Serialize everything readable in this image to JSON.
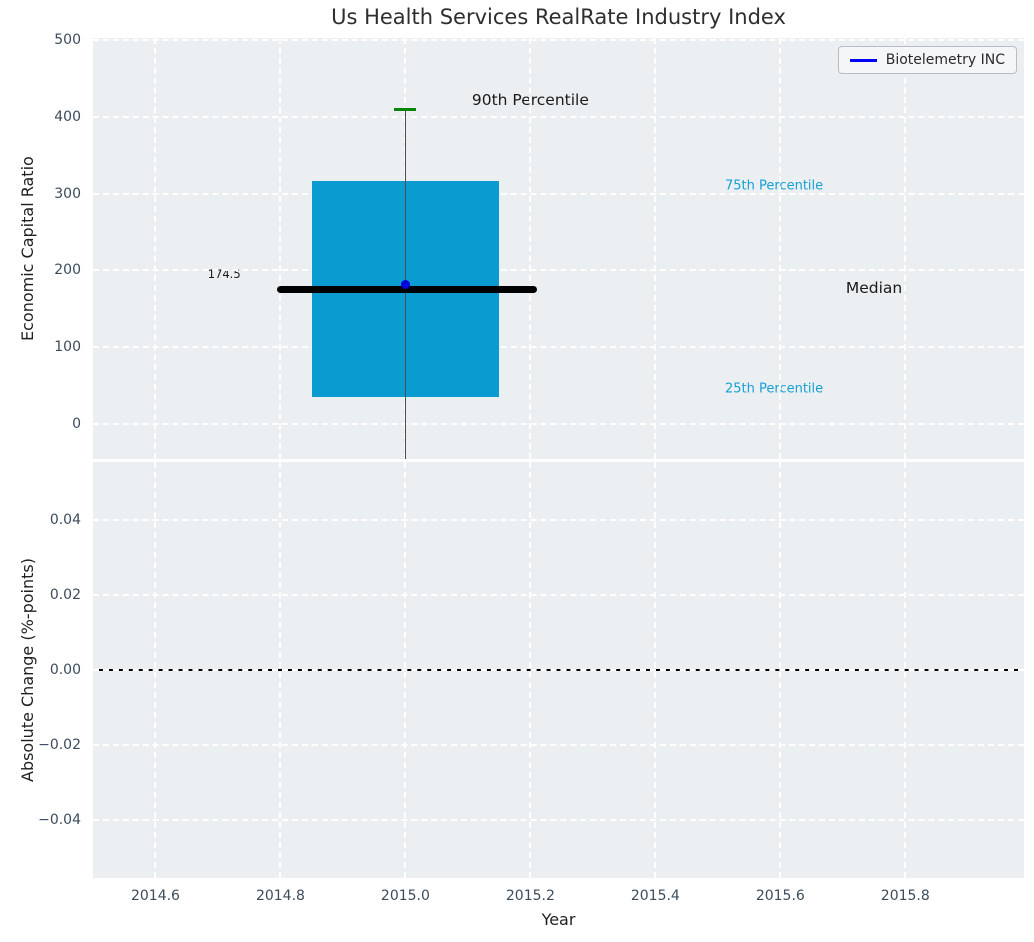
{
  "chart_data": [
    {
      "type": "boxplot",
      "title": "Us Health Services RealRate Industry Index",
      "ylabel": "Economic Capital Ratio",
      "xlabel": "",
      "xlim": [
        2014.5,
        2015.99
      ],
      "ylim": [
        -46,
        503
      ],
      "grid": true,
      "legend": {
        "label": "Biotelemetry INC",
        "position": "upper right"
      },
      "xticks": [
        {
          "v": 2014.6,
          "label": "2014.6"
        },
        {
          "v": 2014.8,
          "label": "2014.8"
        },
        {
          "v": 2015.0,
          "label": "2015.0"
        },
        {
          "v": 2015.2,
          "label": "2015.2"
        },
        {
          "v": 2015.4,
          "label": "2015.4"
        },
        {
          "v": 2015.6,
          "label": "2015.6"
        },
        {
          "v": 2015.8,
          "label": "2015.8"
        }
      ],
      "yticks": [
        {
          "v": 500,
          "label": "500"
        },
        {
          "v": 400,
          "label": "400"
        },
        {
          "v": 300,
          "label": "300"
        },
        {
          "v": 200,
          "label": "200"
        },
        {
          "v": 100,
          "label": "100"
        },
        {
          "v": 0,
          "label": "0"
        }
      ],
      "box": {
        "center_x": 2015.0,
        "left": 2014.85,
        "right": 2015.15,
        "q1": 35,
        "median": 174.5,
        "q3": 316,
        "p90": 410,
        "median_line_x0": 2014.795,
        "median_line_x1": 2015.21,
        "lower_whisker_clipped": true
      },
      "series": [
        {
          "name": "Biotelemetry INC",
          "x": 2015.0,
          "y": 182,
          "marker": "circle"
        }
      ],
      "annotations": {
        "p90": {
          "text": "90th Percentile",
          "x": 2015.2,
          "y": 422
        },
        "p75": {
          "text": "75th Percentile",
          "x": 2015.59,
          "y": 310
        },
        "median": {
          "text": "Median",
          "x": 2015.75,
          "y": 177
        },
        "p25": {
          "text": "25th Percentile",
          "x": 2015.59,
          "y": 45
        },
        "median_value": {
          "text": "174.5",
          "x": 2014.71,
          "y": 195
        }
      }
    },
    {
      "type": "line",
      "title": "",
      "ylabel": "Absolute Change (%-points)",
      "xlabel": "Year",
      "xlim": [
        2014.5,
        2015.99
      ],
      "ylim": [
        -0.0555,
        0.0555
      ],
      "grid": true,
      "zero_line_y": 0,
      "xticks": [
        {
          "v": 2014.6,
          "label": "2014.6"
        },
        {
          "v": 2014.8,
          "label": "2014.8"
        },
        {
          "v": 2015.0,
          "label": "2015.0"
        },
        {
          "v": 2015.2,
          "label": "2015.2"
        },
        {
          "v": 2015.4,
          "label": "2015.4"
        },
        {
          "v": 2015.6,
          "label": "2015.6"
        },
        {
          "v": 2015.8,
          "label": "2015.8"
        }
      ],
      "yticks": [
        {
          "v": 0.04,
          "label": "0.04"
        },
        {
          "v": 0.02,
          "label": "0.02"
        },
        {
          "v": 0,
          "label": "0.00"
        },
        {
          "v": -0.02,
          "label": "−0.02"
        },
        {
          "v": -0.04,
          "label": "−0.04"
        }
      ],
      "series": []
    }
  ],
  "colors": {
    "axes_bg": "#eceff1",
    "grid": "#ffffff",
    "box_fill": "#0a9bd1",
    "p90_cap": "#0b840b",
    "median_line": "#000000",
    "marker": "#0202dd",
    "legend_line": "#0000ff",
    "whisker": "#4d4d4d",
    "percentile_label": "#16a0d4",
    "tick_label": "#3d4c5c",
    "zero_line": "#000000"
  }
}
